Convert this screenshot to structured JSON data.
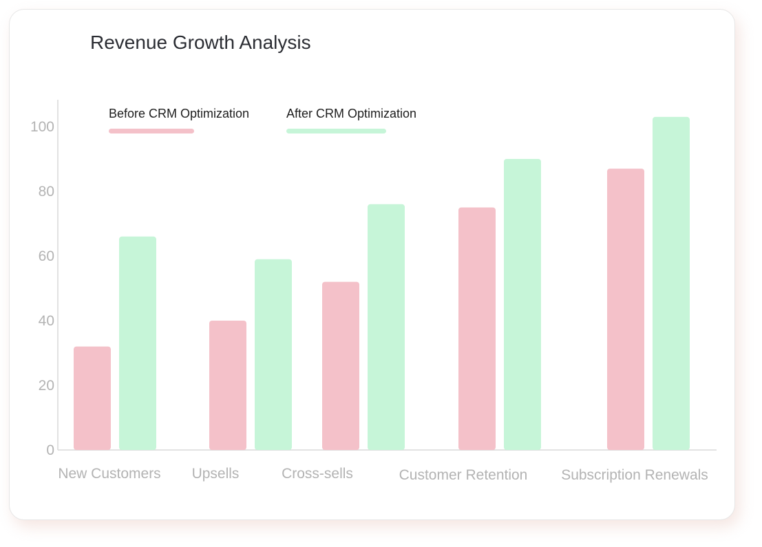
{
  "chart_data": {
    "type": "bar",
    "title": "Revenue Growth Analysis",
    "xlabel": "",
    "ylabel": "",
    "ylim": [
      0,
      108
    ],
    "yticks": [
      0,
      20,
      40,
      60,
      80,
      100
    ],
    "categories": [
      "New Customers",
      "Upsells",
      "Cross-sells",
      "Customer Retention",
      "Subscription Renewals"
    ],
    "series": [
      {
        "name": "Before CRM Optimization",
        "color": "#f4c1c9",
        "values": [
          32,
          40,
          52,
          75,
          87
        ]
      },
      {
        "name": "After CRM Optimization",
        "color": "#c6f5d8",
        "values": [
          66,
          59,
          76,
          90,
          103
        ]
      }
    ],
    "legend_position": "top",
    "grid": false,
    "colors": {
      "axis_text": "#b3b3b3",
      "axis_line": "#d9d9d9",
      "title": "#2b2d33"
    }
  }
}
